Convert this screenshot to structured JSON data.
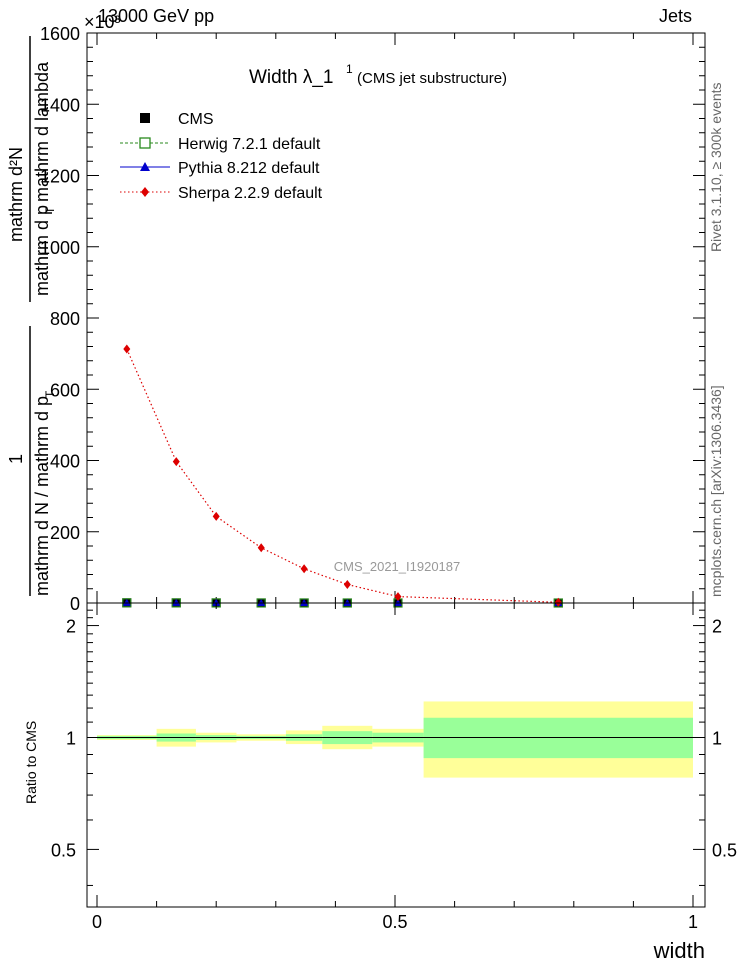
{
  "header": {
    "energy": "13000 GeV pp",
    "category": "Jets",
    "rivet": "Rivet 3.1.10, ≥ 300k events",
    "source": "mcplots.cern.ch [arXiv:1306.3436]"
  },
  "chart_data": [
    {
      "type": "line",
      "title": "Width λ_1",
      "title_sup": "1",
      "subtitle": "(CMS jet substructure)",
      "analysis": "CMS_2021_I1920187",
      "ylabel": "1/(mathrm d N / mathrm d p_T) mathrm d²N/(mathrm d p_T mathrm d lambda)",
      "ylabel_numerator": "1",
      "ylabel_denominator": "mathrm d N / mathrm d p",
      "ylabel_sub1": "T",
      "ylabel_mid": "mathrm d p",
      "ylabel_sub2": "T",
      "ylabel_top": "mathrm d²N",
      "ylabel_top2": "mathrm d lambda",
      "exponent_label": "×10³",
      "ylim": [
        0,
        1600
      ],
      "yticks": [
        0,
        200,
        400,
        600,
        800,
        1000,
        1200,
        1400,
        1600
      ],
      "ytick_labels": [
        "0",
        "200",
        "400",
        "600",
        "800",
        "1000",
        "1200",
        "1400",
        "1600"
      ],
      "xlim": [
        0,
        1
      ],
      "legend_position": "top-left",
      "bin_edges": [
        0,
        0.1,
        0.166,
        0.234,
        0.317,
        0.378,
        0.462,
        0.548,
        1.0
      ],
      "x": [
        0.05,
        0.133,
        0.2,
        0.2755,
        0.3475,
        0.42,
        0.505,
        0.774
      ],
      "series": [
        {
          "name": "CMS",
          "marker": "square",
          "color": "#000000",
          "values": [
            0.5,
            0.3,
            0.2,
            0.12,
            0.07,
            0.04,
            0.02,
            0.005
          ]
        },
        {
          "name": "Herwig 7.2.1 default",
          "marker": "open-square",
          "color": "#2a8a1e",
          "values": [
            0.5,
            0.3,
            0.2,
            0.12,
            0.07,
            0.04,
            0.02,
            0.005
          ]
        },
        {
          "name": "Pythia 8.212 default",
          "marker": "triangle",
          "color": "#0000cc",
          "values": [
            0.5,
            0.3,
            0.2,
            0.12,
            0.07,
            0.04,
            0.02,
            0.005
          ]
        },
        {
          "name": "Sherpa 2.2.9 default",
          "marker": "diamond",
          "color": "#dd0000",
          "values": [
            713,
            397,
            243,
            155,
            96,
            52,
            18,
            2
          ]
        }
      ]
    },
    {
      "type": "area",
      "ylabel": "Ratio to CMS",
      "xlabel": "width",
      "ylim": [
        0.35,
        2.3
      ],
      "yticks": [
        0.5,
        1,
        2
      ],
      "ytick_labels": [
        "0.5",
        "1",
        "2"
      ],
      "xticks": [
        0,
        0.5,
        1
      ],
      "xtick_labels": [
        "0",
        "0.5",
        "1"
      ],
      "bin_edges": [
        0,
        0.1,
        0.166,
        0.234,
        0.317,
        0.378,
        0.462,
        0.548,
        1.0
      ],
      "band_inner": [
        [
          0.99,
          1.01
        ],
        [
          0.975,
          1.025
        ],
        [
          0.985,
          1.015
        ],
        [
          0.99,
          1.01
        ],
        [
          0.98,
          1.02
        ],
        [
          0.96,
          1.04
        ],
        [
          0.97,
          1.03
        ],
        [
          0.88,
          1.13
        ]
      ],
      "band_outer": [
        [
          0.985,
          1.015
        ],
        [
          0.945,
          1.055
        ],
        [
          0.97,
          1.03
        ],
        [
          0.98,
          1.02
        ],
        [
          0.96,
          1.045
        ],
        [
          0.93,
          1.075
        ],
        [
          0.945,
          1.055
        ],
        [
          0.78,
          1.25
        ]
      ],
      "colors": {
        "inner": "#99ff99",
        "outer": "#ffff99"
      }
    }
  ]
}
